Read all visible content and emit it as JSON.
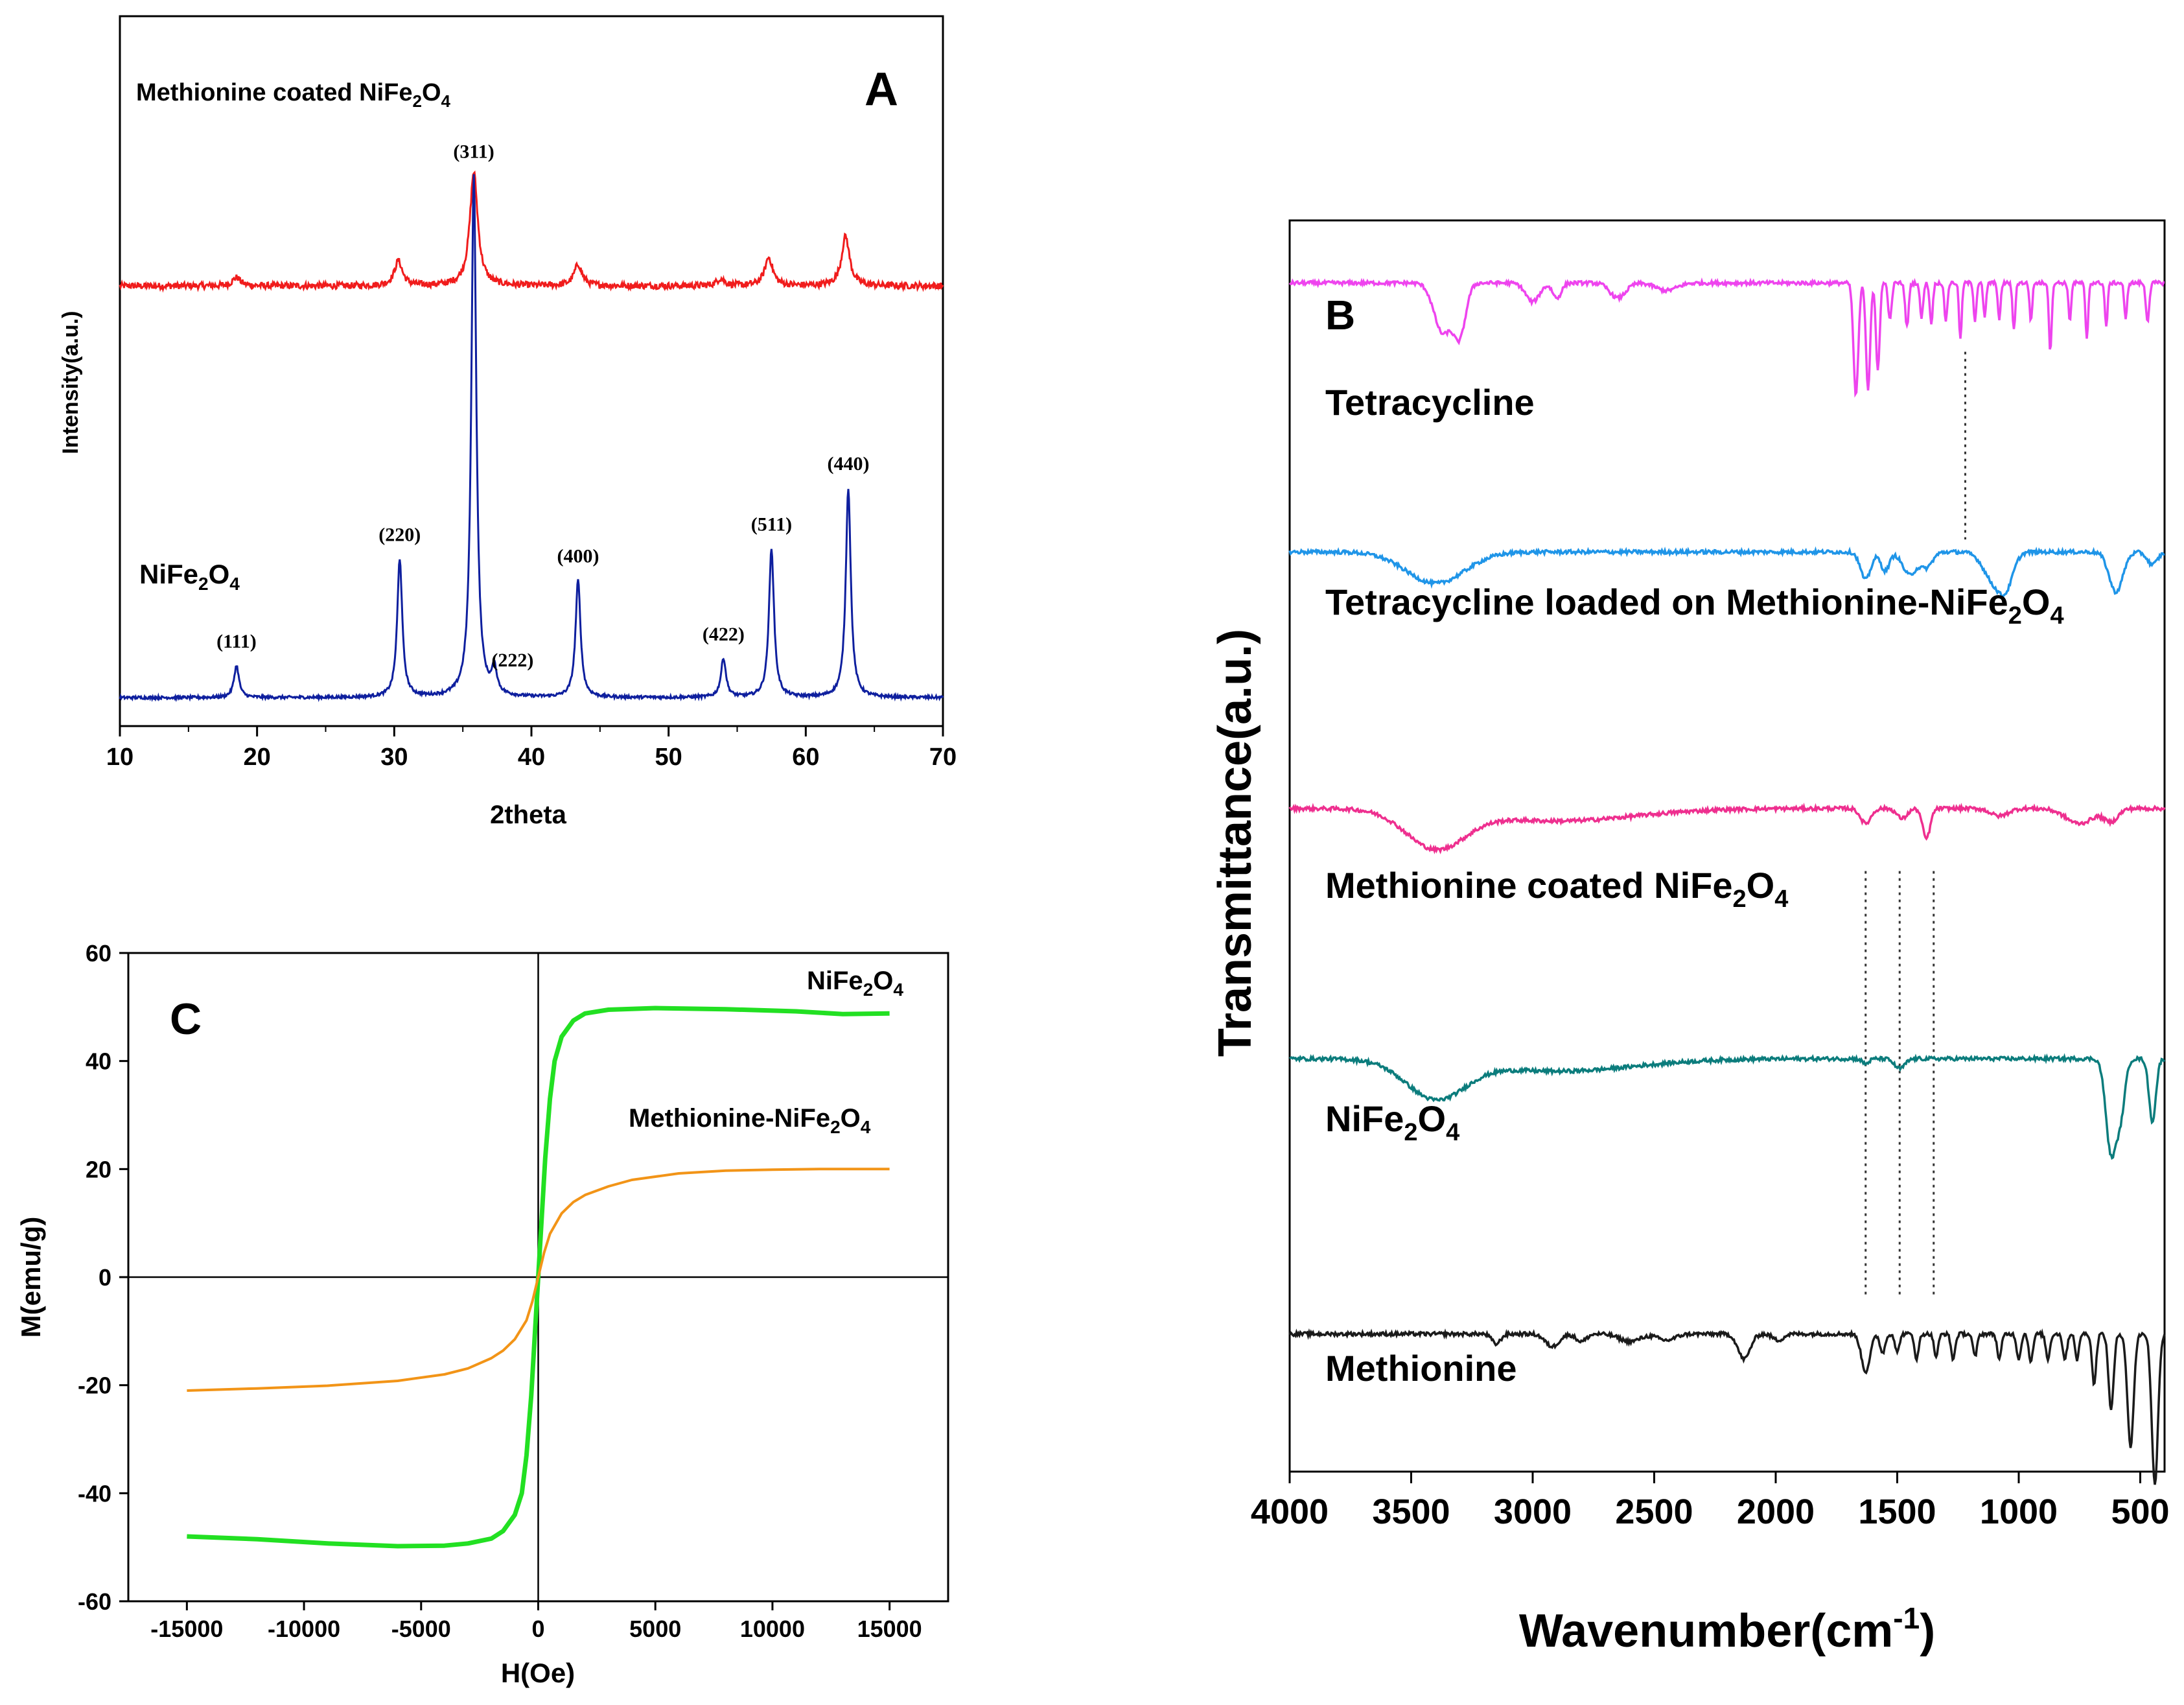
{
  "chart_data": [
    {
      "panel": "A",
      "type": "line",
      "title": "",
      "panel_label": "A",
      "xlabel": "2theta",
      "ylabel": "Intensity(a.u.)",
      "xlim": [
        10,
        70
      ],
      "xticks": [
        "10",
        "20",
        "30",
        "40",
        "50",
        "60",
        "70"
      ],
      "series": [
        {
          "name": "Methionine coated NiFe2O4",
          "label_main": "Methionine coated NiFe",
          "label_sub1": "2",
          "label_mid": "O",
          "label_sub2": "4",
          "color": "#f01c1c",
          "baseline": 0.62,
          "peaks": [
            [
              18.5,
              0.012
            ],
            [
              30.3,
              0.035
            ],
            [
              35.8,
              0.16
            ],
            [
              43.4,
              0.03
            ],
            [
              53.8,
              0.01
            ],
            [
              57.3,
              0.04
            ],
            [
              62.9,
              0.07
            ]
          ]
        },
        {
          "name": "NiFe2O4",
          "label_main": "NiFe",
          "label_sub1": "2",
          "label_mid": "O",
          "label_sub2": "4",
          "color": "#0e1f9e",
          "baseline": 0.04,
          "peaks": [
            [
              18.5,
              0.045
            ],
            [
              30.4,
              0.195
            ],
            [
              35.8,
              0.735
            ],
            [
              37.3,
              0.035
            ],
            [
              43.4,
              0.165
            ],
            [
              54.0,
              0.055
            ],
            [
              57.5,
              0.21
            ],
            [
              63.1,
              0.295
            ]
          ]
        }
      ],
      "annotations": [
        "(111)",
        "(220)",
        "(311)",
        "(222)",
        "(400)",
        "(422)",
        "(511)",
        "(440)"
      ],
      "annotation_x": [
        18.5,
        30.4,
        35.8,
        37.3,
        43.4,
        54.0,
        57.5,
        63.1
      ]
    },
    {
      "panel": "B",
      "type": "line",
      "title": "",
      "panel_label": "B",
      "xlabel_main": "Wavenumber(cm",
      "xlabel_sup": "-1",
      "xlabel_end": ")",
      "ylabel": "Transmittance(a.u.)",
      "xlim": [
        4000,
        400
      ],
      "xticks": [
        "4000",
        "3500",
        "3000",
        "2500",
        "2000",
        "1500",
        "1000",
        "500"
      ],
      "series": [
        {
          "name": "Tetracycline",
          "label": "Tetracycline",
          "color": "#ee44ee",
          "baseline": 0.95
        },
        {
          "name": "Tetracycline loaded on Methionine-NiFe2O4",
          "label_main": "Tetracycline loaded on Methionine-NiFe",
          "label_sub1": "2",
          "label_mid": "O",
          "label_sub2": "4",
          "color": "#1f95e8",
          "baseline": 0.735
        },
        {
          "name": "Methionine coated NiFe2O4",
          "label_main": "Methionine coated NiFe",
          "label_sub1": "2",
          "label_mid": "O",
          "label_sub2": "4",
          "color": "#ee2f8f",
          "baseline": 0.53
        },
        {
          "name": "NiFe2O4",
          "label_main": "NiFe",
          "label_sub1": "2",
          "label_mid": "O",
          "label_sub2": "4",
          "color": "#0b7c7c",
          "baseline": 0.33
        },
        {
          "name": "Methionine",
          "label": "Methionine",
          "color": "#1a1a1a",
          "baseline": 0.11
        }
      ],
      "reference_lines_x": [
        1630,
        1490,
        1350,
        1220
      ]
    },
    {
      "panel": "C",
      "type": "line",
      "title": "",
      "panel_label": "C",
      "xlabel": "H(Oe)",
      "ylabel": "M(emu/g)",
      "xlim": [
        -17500,
        17500
      ],
      "ylim": [
        -60,
        60
      ],
      "xticks": [
        "-15000",
        "-10000",
        "-5000",
        "0",
        "5000",
        "10000",
        "15000"
      ],
      "yticks": [
        "60",
        "40",
        "20",
        "0",
        "-20",
        "-40",
        "-60"
      ],
      "series": [
        {
          "name": "NiFe2O4",
          "label_main": "NiFe",
          "label_sub1": "2",
          "label_mid": "O",
          "label_sub2": "4",
          "color": "#22e022",
          "x": [
            -15000,
            -12000,
            -9000,
            -6000,
            -4000,
            -3000,
            -2000,
            -1500,
            -1000,
            -700,
            -500,
            -300,
            -150,
            0,
            150,
            300,
            500,
            700,
            1000,
            1500,
            2000,
            3000,
            5000,
            8000,
            11000,
            13000,
            15000
          ],
          "y": [
            -48,
            -48.5,
            -49.3,
            -49.8,
            -49.7,
            -49.3,
            -48.4,
            -47,
            -44,
            -40,
            -33,
            -22,
            -11,
            0,
            11,
            22,
            33,
            40,
            44.5,
            47.5,
            48.8,
            49.5,
            49.8,
            49.6,
            49.2,
            48.7,
            48.8
          ]
        },
        {
          "name": "Methionine-NiFe2O4",
          "label_main": "Methionine-NiFe",
          "label_sub1": "2",
          "label_mid": "O",
          "label_sub2": "4",
          "color": "#f29417",
          "x": [
            -15000,
            -12000,
            -9000,
            -6000,
            -4000,
            -3000,
            -2000,
            -1500,
            -1000,
            -500,
            -250,
            0,
            250,
            500,
            1000,
            1500,
            2000,
            3000,
            4000,
            6000,
            8000,
            10000,
            12000,
            15000
          ],
          "y": [
            -21,
            -20.6,
            -20.1,
            -19.2,
            -18,
            -16.9,
            -15,
            -13.6,
            -11.5,
            -8,
            -4.5,
            0,
            4.5,
            8,
            11.8,
            13.9,
            15.2,
            16.8,
            18,
            19.2,
            19.7,
            19.9,
            20,
            20
          ]
        }
      ]
    }
  ]
}
